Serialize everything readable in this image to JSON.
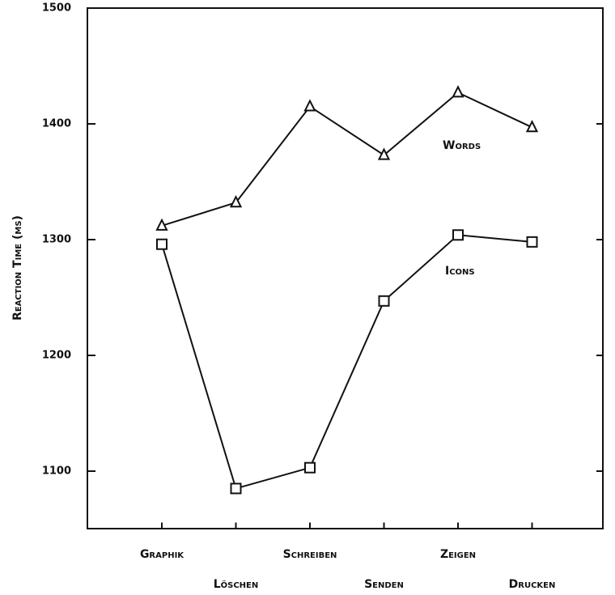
{
  "chart_data": {
    "type": "line",
    "y_label": "Reaction Time (ms)",
    "categories": [
      "Graphik",
      "Löschen",
      "Schreiben",
      "Senden",
      "Zeigen",
      "Drucken"
    ],
    "series": [
      {
        "name": "Words",
        "color": "#111111",
        "marker": "triangle",
        "values": [
          1312,
          1332,
          1415,
          1373,
          1427,
          1397
        ]
      },
      {
        "name": "Icons",
        "color": "#111111",
        "marker": "square",
        "values": [
          1296,
          1085,
          1103,
          1247,
          1304,
          1298
        ]
      }
    ],
    "ylim": [
      1050,
      1500
    ],
    "yticks": [
      1100,
      1200,
      1300,
      1400,
      1500
    ],
    "grid": false
  }
}
